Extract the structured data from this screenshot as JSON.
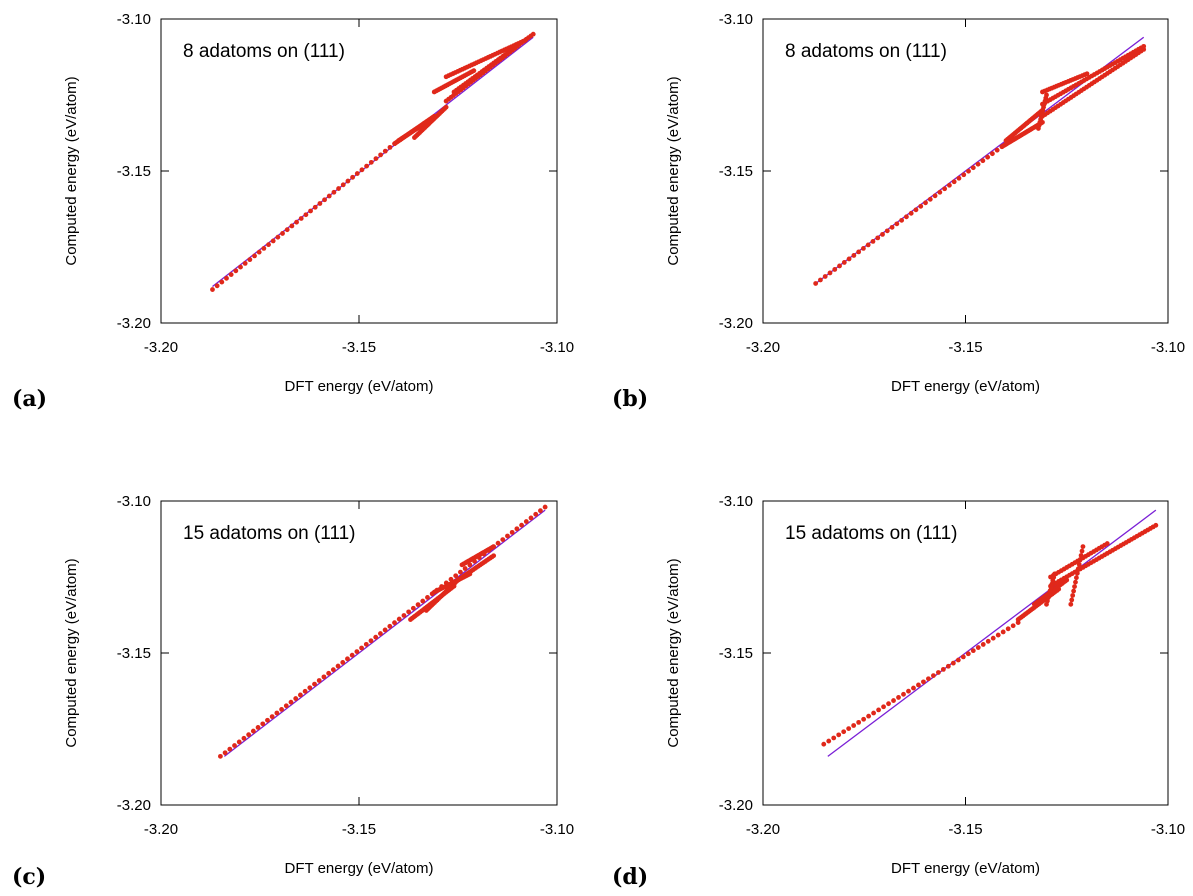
{
  "chart_data": [
    {
      "panel_label": "(a)",
      "type": "scatter",
      "annotation": "8 adatoms on (111)",
      "xlabel": "DFT energy (eV/atom)",
      "ylabel": "Computed energy (eV/atom)",
      "xlim": [
        -3.2,
        -3.1
      ],
      "ylim": [
        -3.2,
        -3.1
      ],
      "xticks": [
        "-3.20",
        "-3.15",
        "-3.10"
      ],
      "yticks": [
        "-3.20",
        "-3.15",
        "-3.10"
      ],
      "grid": false,
      "fit_line": {
        "color": "#7a1fd6",
        "x": [
          -3.187,
          -3.106
        ],
        "y": [
          -3.188,
          -3.106
        ]
      },
      "series": [
        {
          "color": "#e0281a",
          "segments": [
            {
              "x": [
                -3.187,
                -3.141
              ],
              "y": [
                -3.189,
                -3.141
              ],
              "n": 40
            },
            {
              "x": [
                -3.141,
                -3.131
              ],
              "y": [
                -3.141,
                -3.132
              ],
              "n": 30
            },
            {
              "x": [
                -3.14,
                -3.133
              ],
              "y": [
                -3.14,
                -3.134
              ],
              "n": 25
            },
            {
              "x": [
                -3.136,
                -3.128
              ],
              "y": [
                -3.139,
                -3.129
              ],
              "n": 25
            },
            {
              "x": [
                -3.131,
                -3.121
              ],
              "y": [
                -3.124,
                -3.117
              ],
              "n": 22
            },
            {
              "x": [
                -3.126,
                -3.106
              ],
              "y": [
                -3.124,
                -3.105
              ],
              "n": 35
            },
            {
              "x": [
                -3.128,
                -3.108
              ],
              "y": [
                -3.119,
                -3.107
              ],
              "n": 35
            },
            {
              "x": [
                -3.128,
                -3.11
              ],
              "y": [
                -3.127,
                -3.109
              ],
              "n": 30
            }
          ]
        }
      ]
    },
    {
      "panel_label": "(b)",
      "type": "scatter",
      "annotation": "8 adatoms on (111)",
      "xlabel": "DFT energy (eV/atom)",
      "ylabel": "Computed energy (eV/atom)",
      "xlim": [
        -3.2,
        -3.1
      ],
      "ylim": [
        -3.2,
        -3.1
      ],
      "xticks": [
        "-3.20",
        "-3.15",
        "-3.10"
      ],
      "yticks": [
        "-3.20",
        "-3.15",
        "-3.10"
      ],
      "grid": false,
      "fit_line": {
        "color": "#7a1fd6",
        "x": [
          -3.187,
          -3.106
        ],
        "y": [
          -3.187,
          -3.106
        ]
      },
      "series": [
        {
          "color": "#e0281a",
          "segments": [
            {
              "x": [
                -3.187,
                -3.141
              ],
              "y": [
                -3.187,
                -3.142
              ],
              "n": 40
            },
            {
              "x": [
                -3.141,
                -3.131
              ],
              "y": [
                -3.142,
                -3.134
              ],
              "n": 30
            },
            {
              "x": [
                -3.14,
                -3.131
              ],
              "y": [
                -3.14,
                -3.13
              ],
              "n": 25
            },
            {
              "x": [
                -3.131,
                -3.106
              ],
              "y": [
                -3.128,
                -3.109
              ],
              "n": 40
            },
            {
              "x": [
                -3.131,
                -3.106
              ],
              "y": [
                -3.132,
                -3.11
              ],
              "n": 40
            },
            {
              "x": [
                -3.131,
                -3.12
              ],
              "y": [
                -3.124,
                -3.118
              ],
              "n": 20
            },
            {
              "x": [
                -3.132,
                -3.13
              ],
              "y": [
                -3.136,
                -3.125
              ],
              "n": 12
            }
          ]
        }
      ]
    },
    {
      "panel_label": "(c)",
      "type": "scatter",
      "annotation": "15 adatoms on (111)",
      "xlabel": "DFT energy (eV/atom)",
      "ylabel": "Computed energy (eV/atom)",
      "xlim": [
        -3.2,
        -3.1
      ],
      "ylim": [
        -3.2,
        -3.1
      ],
      "xticks": [
        "-3.20",
        "-3.15",
        "-3.10"
      ],
      "yticks": [
        "-3.20",
        "-3.15",
        "-3.10"
      ],
      "grid": false,
      "fit_line": {
        "color": "#7a1fd6",
        "x": [
          -3.184,
          -3.103
        ],
        "y": [
          -3.184,
          -3.103
        ]
      },
      "series": [
        {
          "color": "#e0281a",
          "segments": [
            {
              "x": [
                -3.185,
                -3.103
              ],
              "y": [
                -3.184,
                -3.102
              ],
              "n": 70
            },
            {
              "x": [
                -3.137,
                -3.126
              ],
              "y": [
                -3.139,
                -3.128
              ],
              "n": 28
            },
            {
              "x": [
                -3.133,
                -3.125
              ],
              "y": [
                -3.136,
                -3.126
              ],
              "n": 24
            },
            {
              "x": [
                -3.131,
                -3.122
              ],
              "y": [
                -3.13,
                -3.124
              ],
              "n": 22
            },
            {
              "x": [
                -3.125,
                -3.116
              ],
              "y": [
                -3.126,
                -3.118
              ],
              "n": 22
            },
            {
              "x": [
                -3.124,
                -3.116
              ],
              "y": [
                -3.121,
                -3.115
              ],
              "n": 20
            }
          ]
        }
      ]
    },
    {
      "panel_label": "(d)",
      "type": "scatter",
      "annotation": "15 adatoms on (111)",
      "xlabel": "DFT energy (eV/atom)",
      "ylabel": "Computed energy (eV/atom)",
      "xlim": [
        -3.2,
        -3.1
      ],
      "ylim": [
        -3.2,
        -3.1
      ],
      "xticks": [
        "-3.20",
        "-3.15",
        "-3.10"
      ],
      "yticks": [
        "-3.20",
        "-3.15",
        "-3.10"
      ],
      "grid": false,
      "fit_line": {
        "color": "#7a1fd6",
        "x": [
          -3.184,
          -3.103
        ],
        "y": [
          -3.184,
          -3.103
        ]
      },
      "series": [
        {
          "color": "#e0281a",
          "segments": [
            {
              "x": [
                -3.185,
                -3.137
              ],
              "y": [
                -3.18,
                -3.14
              ],
              "n": 40
            },
            {
              "x": [
                -3.137,
                -3.127
              ],
              "y": [
                -3.139,
                -3.129
              ],
              "n": 26
            },
            {
              "x": [
                -3.133,
                -3.125
              ],
              "y": [
                -3.134,
                -3.126
              ],
              "n": 22
            },
            {
              "x": [
                -3.129,
                -3.103
              ],
              "y": [
                -3.128,
                -3.108
              ],
              "n": 40
            },
            {
              "x": [
                -3.129,
                -3.115
              ],
              "y": [
                -3.125,
                -3.114
              ],
              "n": 22
            },
            {
              "x": [
                -3.124,
                -3.121
              ],
              "y": [
                -3.134,
                -3.115
              ],
              "n": 14
            },
            {
              "x": [
                -3.13,
                -3.128
              ],
              "y": [
                -3.134,
                -3.124
              ],
              "n": 10
            }
          ]
        }
      ]
    }
  ]
}
